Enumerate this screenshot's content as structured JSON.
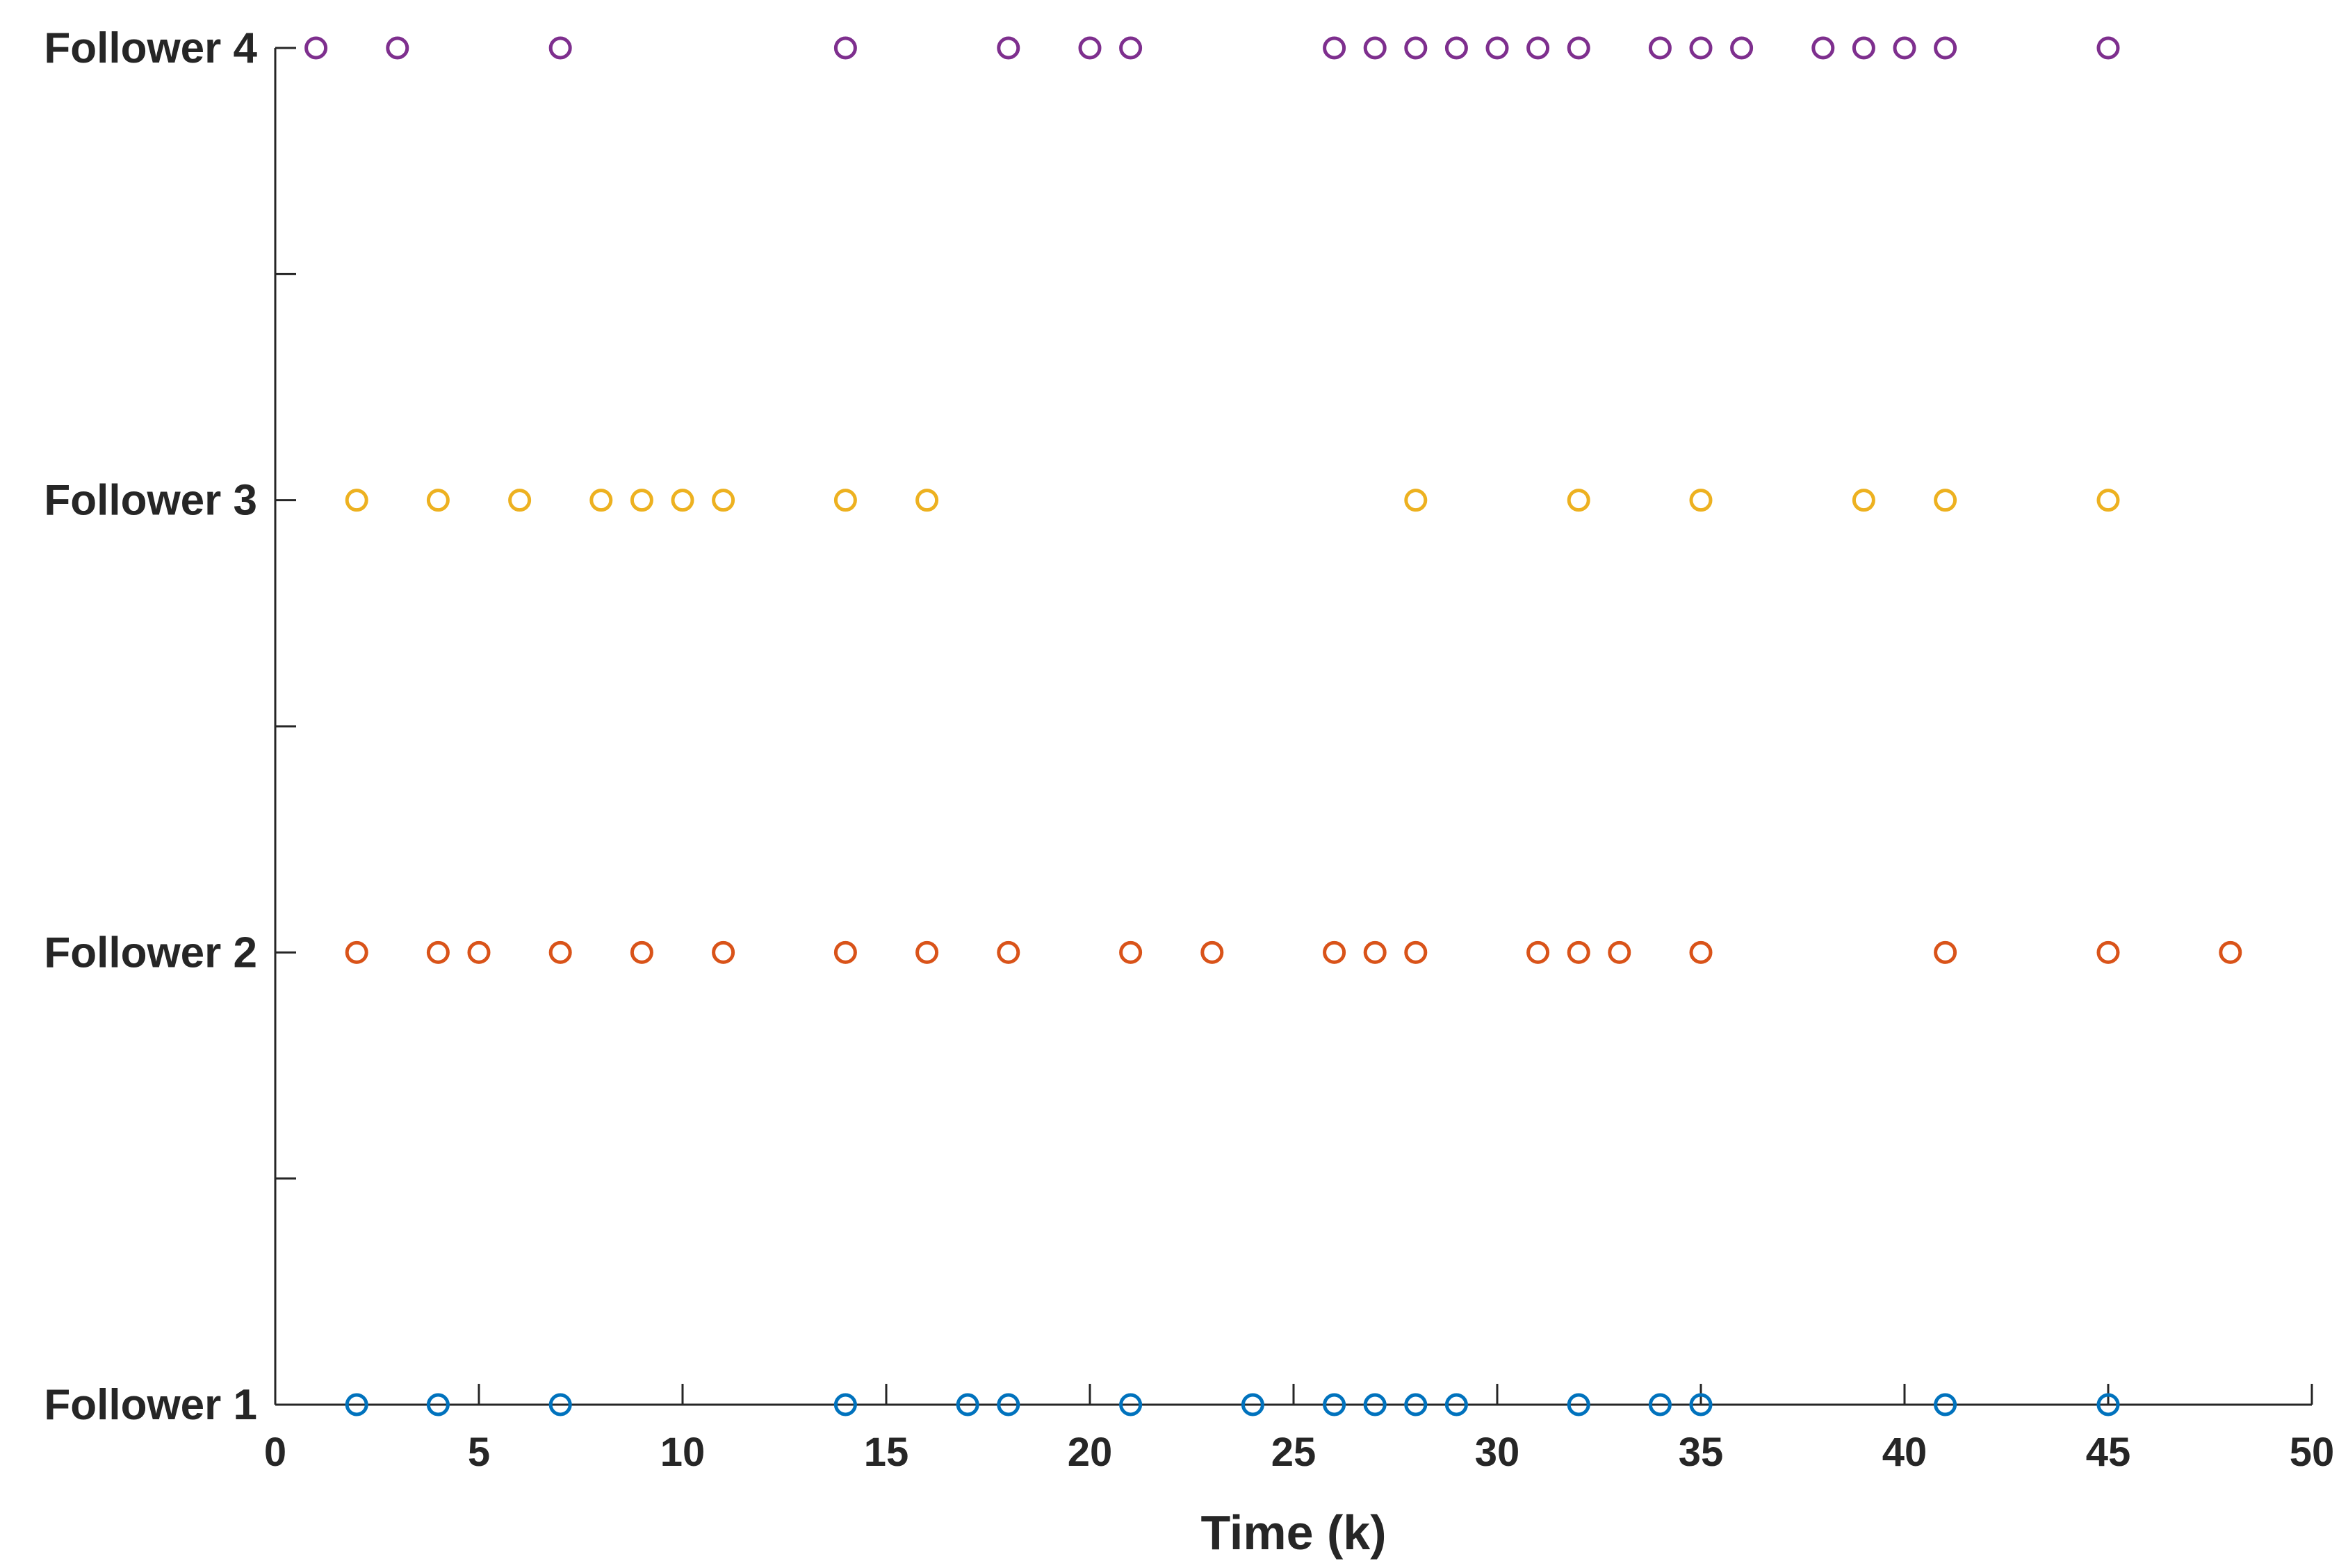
{
  "chart_data": {
    "type": "scatter",
    "title": "",
    "xlabel": "Time (k)",
    "ylabel": "",
    "xlim": [
      0,
      50
    ],
    "ylim": [
      1,
      4
    ],
    "x_ticks": [
      0,
      5,
      10,
      15,
      20,
      25,
      30,
      35,
      40,
      45,
      50
    ],
    "y_ticks": [
      1,
      1.5,
      2,
      2.5,
      3,
      3.5,
      4
    ],
    "y_tick_labels": [
      {
        "value": 1,
        "label": "Follower 1"
      },
      {
        "value": 2,
        "label": "Follower 2"
      },
      {
        "value": 3,
        "label": "Follower 3"
      },
      {
        "value": 4,
        "label": "Follower 4"
      }
    ],
    "marker": "circle",
    "grid": false,
    "legend": "none",
    "series": [
      {
        "name": "Follower 1",
        "y": 1,
        "color": "#0072BD",
        "x": [
          2,
          4,
          7,
          14,
          17,
          18,
          21,
          24,
          26,
          27,
          28,
          29,
          32,
          34,
          35,
          41,
          45
        ]
      },
      {
        "name": "Follower 2",
        "y": 2,
        "color": "#D95319",
        "x": [
          2,
          4,
          5,
          7,
          9,
          11,
          14,
          16,
          18,
          21,
          23,
          26,
          27,
          28,
          31,
          32,
          33,
          35,
          41,
          45,
          48
        ]
      },
      {
        "name": "Follower 3",
        "y": 3,
        "color": "#EDB120",
        "x": [
          2,
          4,
          6,
          8,
          9,
          10,
          11,
          14,
          16,
          28,
          32,
          35,
          39,
          41,
          45
        ]
      },
      {
        "name": "Follower 4",
        "y": 4,
        "color": "#7E2F8E",
        "x": [
          1,
          3,
          7,
          14,
          18,
          20,
          21,
          26,
          27,
          28,
          29,
          30,
          31,
          32,
          34,
          35,
          36,
          38,
          39,
          40,
          41,
          45
        ]
      }
    ]
  }
}
